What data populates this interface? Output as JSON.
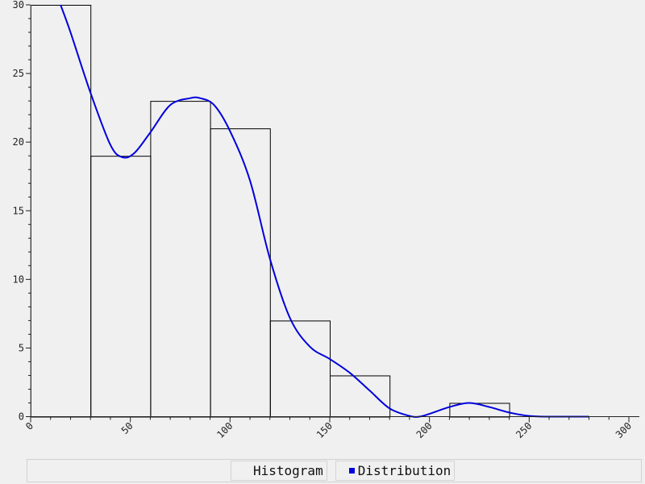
{
  "chart_data": {
    "type": "bar",
    "title": "",
    "xlabel": "",
    "ylabel": "",
    "xlim": [
      0,
      300
    ],
    "ylim": [
      0,
      30
    ],
    "x_ticks": [
      "0",
      "50",
      "100",
      "150",
      "200",
      "250",
      "300"
    ],
    "y_ticks": [
      "0",
      "5",
      "10",
      "15",
      "20",
      "25",
      "30"
    ],
    "grid": false,
    "legend_position": "bottom",
    "series": [
      {
        "name": "Histogram",
        "kind": "histogram",
        "bin_edges": [
          0,
          30,
          60,
          90,
          120,
          150,
          180,
          210,
          240,
          270,
          300
        ],
        "values": [
          30,
          19,
          23,
          21,
          7,
          3,
          0,
          1,
          0,
          0
        ],
        "color": "#000000"
      },
      {
        "name": "Distribution",
        "kind": "line",
        "color": "#0000dd",
        "x": [
          15,
          20,
          30,
          40,
          46,
          52,
          60,
          70,
          80,
          85,
          92,
          100,
          110,
          120,
          130,
          140,
          150,
          160,
          170,
          180,
          190,
          195,
          200,
          210,
          220,
          230,
          240,
          250,
          260,
          280
        ],
        "y": [
          30,
          28,
          23.6,
          19.8,
          18.9,
          19.2,
          20.7,
          22.7,
          23.2,
          23.2,
          22.7,
          20.8,
          17.2,
          11.5,
          7.2,
          5.1,
          4.2,
          3.2,
          1.9,
          0.6,
          0.05,
          0,
          0.2,
          0.7,
          1.0,
          0.7,
          0.3,
          0.05,
          0.0,
          0.0
        ]
      }
    ]
  },
  "legend": {
    "items": [
      {
        "label": "Histogram",
        "color": ""
      },
      {
        "label": "Distribution",
        "color": "#0000dd"
      }
    ]
  }
}
